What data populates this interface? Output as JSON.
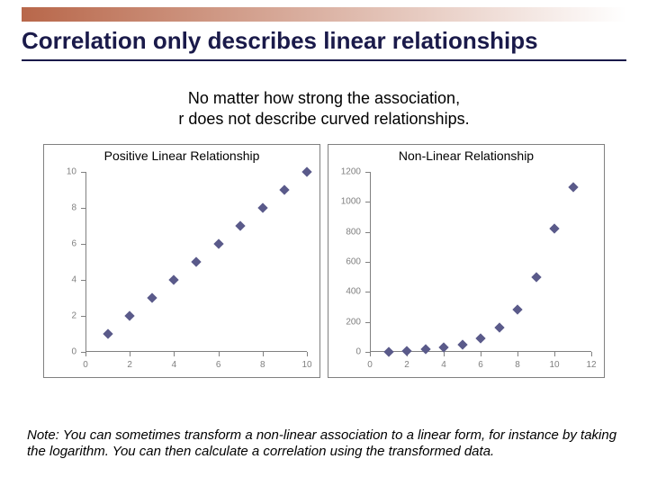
{
  "slide": {
    "title": "Correlation only describes linear relationships",
    "subtitle_line1": "No matter how strong the association,",
    "subtitle_line2": "r does not describe curved relationships.",
    "note": "Note: You can sometimes transform a non-linear association to a linear form, for instance by taking the logarithm. You can then calculate a correlation using the transformed data.",
    "title_color": "#1a1a4a",
    "bar_gradient_from": "#b8674a",
    "bar_gradient_to": "#ffffff"
  },
  "charts": [
    {
      "title": "Positive Linear Relationship",
      "type": "scatter",
      "xlim": [
        0,
        10
      ],
      "ylim": [
        0,
        10
      ],
      "xtick_step": 2,
      "ytick_step": 2,
      "axis_color": "#808080",
      "tick_label_color": "#808080",
      "tick_fontsize": 10,
      "title_fontsize": 14,
      "marker_color": "#5a5a8a",
      "marker_shape": "diamond",
      "marker_size": 8,
      "background_color": "#ffffff",
      "border_color": "#808080",
      "points": [
        {
          "x": 1,
          "y": 1
        },
        {
          "x": 2,
          "y": 2
        },
        {
          "x": 3,
          "y": 3
        },
        {
          "x": 4,
          "y": 4
        },
        {
          "x": 5,
          "y": 5
        },
        {
          "x": 6,
          "y": 6
        },
        {
          "x": 7,
          "y": 7
        },
        {
          "x": 8,
          "y": 8
        },
        {
          "x": 9,
          "y": 9
        },
        {
          "x": 10,
          "y": 10
        }
      ]
    },
    {
      "title": "Non-Linear Relationship",
      "type": "scatter",
      "xlim": [
        0,
        12
      ],
      "ylim": [
        0,
        1200
      ],
      "xtick_step": 2,
      "ytick_step": 200,
      "axis_color": "#808080",
      "tick_label_color": "#808080",
      "tick_fontsize": 10,
      "title_fontsize": 14,
      "marker_color": "#5a5a8a",
      "marker_shape": "diamond",
      "marker_size": 8,
      "background_color": "#ffffff",
      "border_color": "#808080",
      "points": [
        {
          "x": 1,
          "y": 2
        },
        {
          "x": 2,
          "y": 8
        },
        {
          "x": 3,
          "y": 18
        },
        {
          "x": 4,
          "y": 32
        },
        {
          "x": 5,
          "y": 50
        },
        {
          "x": 6,
          "y": 90
        },
        {
          "x": 7,
          "y": 160
        },
        {
          "x": 8,
          "y": 280
        },
        {
          "x": 9,
          "y": 500
        },
        {
          "x": 10,
          "y": 820
        },
        {
          "x": 11,
          "y": 1100
        }
      ]
    }
  ]
}
